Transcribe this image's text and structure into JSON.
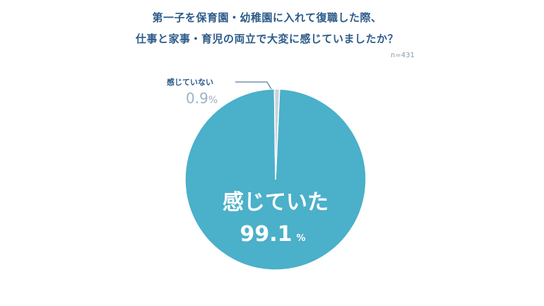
{
  "title_lines": [
    "第一子を保育園・幼稚園に入れて復職した際、",
    "仕事と家事・育児の両立で大変に感じていましたか？"
  ],
  "n_label": "n=431",
  "colors": {
    "main_slice": "#4bb0c9",
    "small_slice": "#c8d2dc",
    "title": "#2d5b8a"
  },
  "chart_data": {
    "type": "pie",
    "title": "第一子を保育園・幼稚園に入れて復職した際、仕事と家事・育児の両立で大変に感じていましたか？",
    "note": "n=431",
    "categories": [
      "感じていた",
      "感じていない"
    ],
    "values": [
      99.1,
      0.9
    ],
    "unit": "%",
    "labels": [
      {
        "category": "感じていた",
        "value_text": "99.1",
        "unit": "%"
      },
      {
        "category": "感じていない",
        "value_text": "0.9",
        "unit": "%"
      }
    ]
  }
}
